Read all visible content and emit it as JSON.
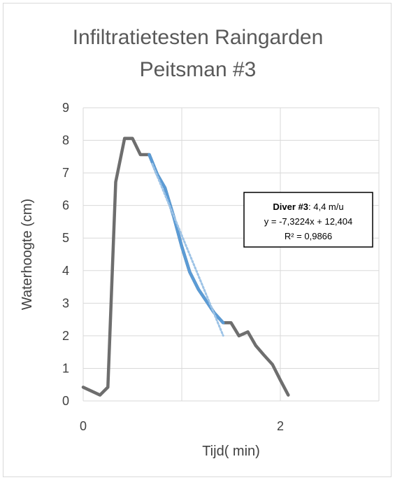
{
  "chart_data": {
    "type": "line",
    "title": [
      "Infiltratietesten Raingarden",
      "Peitsman #3"
    ],
    "xlabel": "Tijd( min)",
    "ylabel": "Waterhoogte (cm)",
    "xlim": [
      0,
      3
    ],
    "ylim": [
      0,
      9
    ],
    "x_ticks": [
      0,
      2
    ],
    "x_tick_labels": [
      "0",
      "2"
    ],
    "y_ticks": [
      0,
      1,
      2,
      3,
      4,
      5,
      6,
      7,
      8,
      9
    ],
    "y_tick_labels": [
      "0",
      "1",
      "2",
      "3",
      "4",
      "5",
      "6",
      "7",
      "8",
      "9"
    ],
    "grid": true,
    "series": [
      {
        "color": "#6e6e6e",
        "points": [
          [
            0.0,
            0.42
          ],
          [
            0.17,
            0.18
          ],
          [
            0.25,
            0.42
          ],
          [
            0.33,
            6.72
          ],
          [
            0.42,
            8.06
          ],
          [
            0.5,
            8.06
          ],
          [
            0.58,
            7.56
          ],
          [
            0.67,
            7.56
          ],
          [
            0.75,
            6.96
          ],
          [
            0.83,
            6.54
          ],
          [
            0.92,
            5.64
          ],
          [
            1.0,
            4.74
          ],
          [
            1.08,
            3.96
          ],
          [
            1.17,
            3.42
          ],
          [
            1.25,
            3.06
          ],
          [
            1.33,
            2.7
          ],
          [
            1.42,
            2.4
          ],
          [
            1.5,
            2.4
          ],
          [
            1.58,
            2.0
          ],
          [
            1.67,
            2.12
          ],
          [
            1.75,
            1.7
          ],
          [
            1.83,
            1.42
          ],
          [
            1.92,
            1.12
          ],
          [
            2.0,
            0.64
          ],
          [
            2.08,
            0.18
          ]
        ]
      },
      {
        "color": "#5b9bd5",
        "points": [
          [
            0.67,
            7.56
          ],
          [
            0.75,
            6.96
          ],
          [
            0.83,
            6.54
          ],
          [
            0.92,
            5.64
          ],
          [
            1.0,
            4.74
          ],
          [
            1.08,
            3.96
          ],
          [
            1.17,
            3.42
          ],
          [
            1.25,
            3.06
          ],
          [
            1.33,
            2.7
          ],
          [
            1.42,
            2.4
          ]
        ]
      }
    ],
    "trendline": {
      "color": "#9dc3e6",
      "slope": -7.3224,
      "intercept": 12.404,
      "x_range": [
        0.7,
        1.42
      ]
    },
    "annotation": {
      "line1_bold": "Diver #3",
      "line1_rest": ": 4,4 m/u",
      "line2": "y = -7,3224x + 12,404",
      "line3": "R² = 0,9866"
    }
  }
}
